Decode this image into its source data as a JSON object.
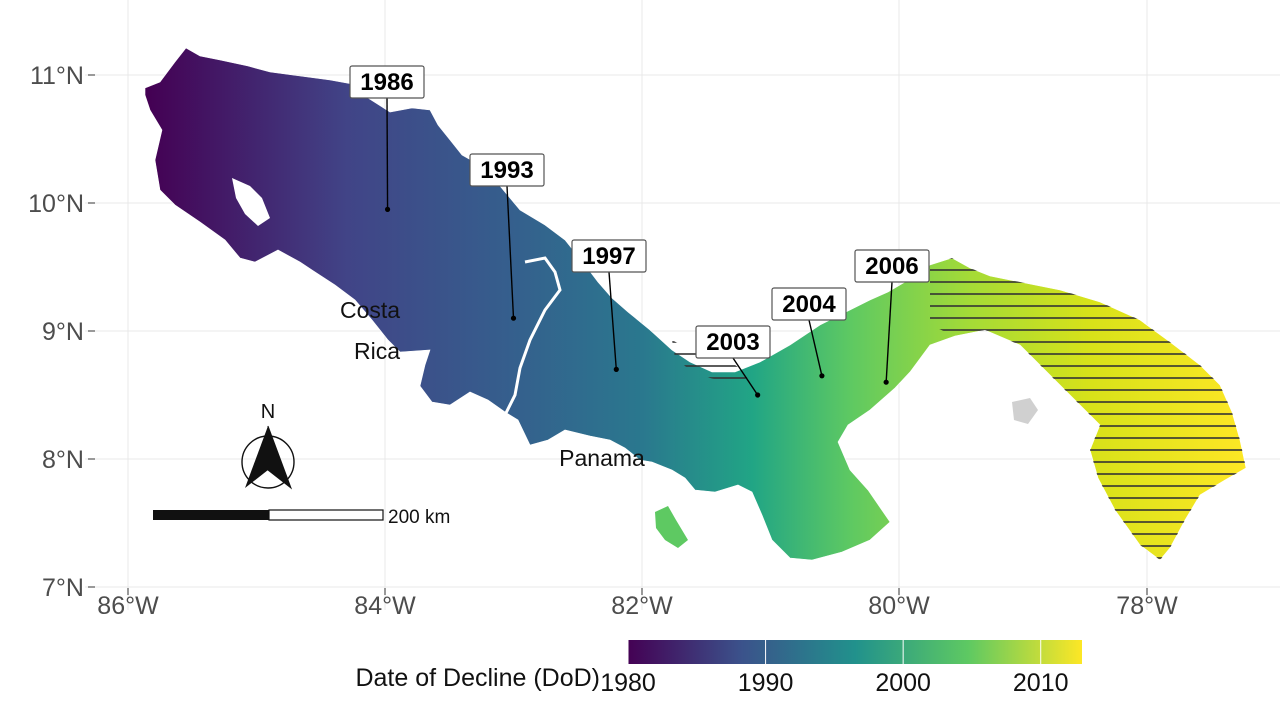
{
  "map": {
    "lat_ticks": [
      "11°N",
      "10°N",
      "9°N",
      "8°N",
      "7°N"
    ],
    "lon_ticks": [
      "86°W",
      "84°W",
      "82°W",
      "80°W",
      "78°W"
    ],
    "country_labels": {
      "costa_rica_line1": "Costa",
      "costa_rica_line2": "Rica",
      "panama": "Panama"
    },
    "callouts": [
      {
        "year": "1986",
        "lon": -83.98,
        "lat": 9.95
      },
      {
        "year": "1993",
        "lon": -83.0,
        "lat": 9.1
      },
      {
        "year": "1997",
        "lon": -82.2,
        "lat": 8.7
      },
      {
        "year": "2003",
        "lon": -81.1,
        "lat": 8.5
      },
      {
        "year": "2004",
        "lon": -80.6,
        "lat": 8.65
      },
      {
        "year": "2006",
        "lon": -80.1,
        "lat": 8.6
      }
    ],
    "hatched_region": "eastern Panama (Darién / Guna Yala) and Bocas del Toro strip",
    "north_arrow": {
      "label": "N",
      "icon": "north-arrow-icon"
    },
    "scale_bar": {
      "label": "200 km"
    },
    "legend": {
      "title": "Date of Decline (DoD)",
      "ticks": [
        "1980",
        "1990",
        "2000",
        "2010"
      ],
      "range": [
        1980,
        2013
      ],
      "colormap": "viridis",
      "colors": [
        "#440154",
        "#3b528b",
        "#21918c",
        "#5ec962",
        "#fde725"
      ]
    }
  }
}
